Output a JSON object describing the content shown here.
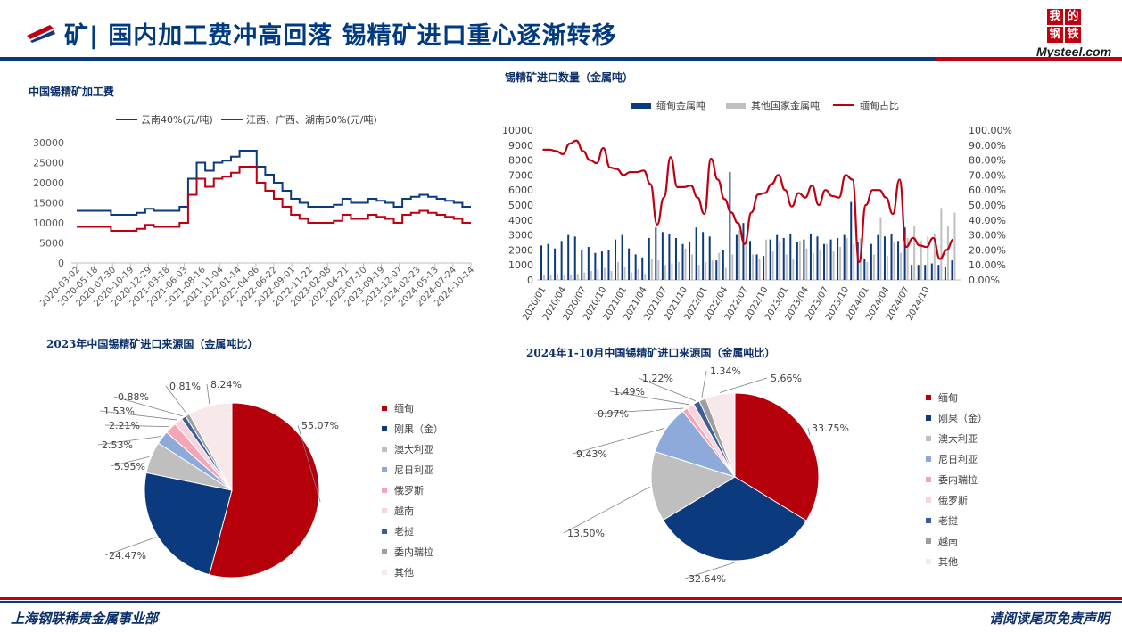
{
  "header": {
    "title": "矿| 国内加工费冲高回落  锡精矿进口重心逐渐转移",
    "brand_chars": [
      "我",
      "的",
      "钢",
      "铁"
    ],
    "brand_word": "Mysteel.com"
  },
  "footer": {
    "left": "上海钢联稀贵金属事业部",
    "right": "请阅读尾页免责声明"
  },
  "colors": {
    "navy": "#0b3a7e",
    "red": "#c00010",
    "grey": "#bfbfbf"
  },
  "chart_data": [
    {
      "type": "line",
      "title": "中国锡精矿加工费",
      "xlabel": "",
      "ylabel": "",
      "ylim": [
        0,
        30000
      ],
      "yticks": [
        "0",
        "5000",
        "10000",
        "15000",
        "20000",
        "25000",
        "30000"
      ],
      "xticks": [
        "2020-03-02",
        "2020-05-18",
        "2020-07-30",
        "2020-10-19",
        "2020-12-29",
        "2021-03-18",
        "2021-06-03",
        "2021-08-16",
        "2021-11-04",
        "2022-01-14",
        "2022-04-06",
        "2022-06-22",
        "2022-09-01",
        "2022-11-21",
        "2023-02-08",
        "2023-04-21",
        "2023-07-10",
        "2023-09-19",
        "2023-12-07",
        "2024-02-23",
        "2024-05-13",
        "2024-07-24",
        "2024-10-14"
      ],
      "legend_position": "top",
      "series": [
        {
          "name": "云南40%(元/吨)",
          "color": "#0b3a7e",
          "values": [
            13000,
            13000,
            13000,
            13000,
            12000,
            12000,
            12000,
            12500,
            13500,
            13000,
            13000,
            13000,
            14000,
            21000,
            25000,
            23000,
            25000,
            25500,
            26500,
            28000,
            28000,
            24000,
            22000,
            20000,
            18000,
            16000,
            15000,
            14000,
            14000,
            14000,
            14500,
            16000,
            15000,
            15000,
            16000,
            15500,
            15000,
            14000,
            16000,
            16500,
            17000,
            16500,
            16000,
            15500,
            15000,
            14000,
            14000
          ]
        },
        {
          "name": "江西、广西、湖南60%(元/吨)",
          "color": "#c00010",
          "values": [
            9000,
            9000,
            9000,
            9000,
            8000,
            8000,
            8000,
            8500,
            9500,
            9000,
            9000,
            9000,
            10000,
            17000,
            21000,
            19000,
            21000,
            21500,
            22500,
            24000,
            24000,
            20000,
            18000,
            16000,
            14000,
            12000,
            11000,
            10000,
            10000,
            10000,
            10500,
            12000,
            11000,
            11000,
            12000,
            11500,
            11000,
            10000,
            12000,
            12500,
            13000,
            12500,
            12000,
            11500,
            11000,
            10000,
            10000
          ]
        }
      ]
    },
    {
      "type": "bar",
      "title": "锡精矿进口数量（金属吨）",
      "ylim": [
        0,
        10000
      ],
      "y2lim": [
        0,
        1
      ],
      "yticks": [
        "0",
        "1000",
        "2000",
        "3000",
        "4000",
        "5000",
        "6000",
        "7000",
        "8000",
        "9000",
        "10000"
      ],
      "y2ticks": [
        "0.00%",
        "10.00%",
        "20.00%",
        "30.00%",
        "40.00%",
        "50.00%",
        "60.00%",
        "70.00%",
        "80.00%",
        "90.00%",
        "100.00%"
      ],
      "xticks": [
        "2020/01",
        "2020/04",
        "2020/07",
        "2020/10",
        "2021/01",
        "2021/04",
        "2021/07",
        "2021/10",
        "2022/01",
        "2022/04",
        "2022/07",
        "2022/10",
        "2023/01",
        "2023/04",
        "2023/07",
        "2023/10",
        "2024/01",
        "2024/04",
        "2024/07",
        "2024/10"
      ],
      "legend_position": "top",
      "series": [
        {
          "name": "缅甸金属吨",
          "color": "#0b3a7e",
          "values": [
            2300,
            2400,
            2100,
            2600,
            3000,
            2900,
            2000,
            2200,
            1800,
            1900,
            2000,
            2700,
            3000,
            2100,
            1700,
            1500,
            2800,
            3500,
            3200,
            3100,
            2800,
            2400,
            2500,
            3500,
            3200,
            2900,
            1300,
            2000,
            7200,
            3000,
            3800,
            2600,
            1700,
            1600,
            2700,
            3000,
            2800,
            3100,
            2500,
            2700,
            3100,
            2900,
            2400,
            2700,
            2800,
            3000,
            5200,
            2500,
            1400,
            2400,
            3000,
            2900,
            3100,
            2600,
            3500,
            1000,
            1000,
            1000,
            1100,
            1000,
            900,
            1300
          ]
        },
        {
          "name": "其他国家金属吨",
          "color": "#bfbfbf",
          "values": [
            300,
            300,
            400,
            300,
            300,
            400,
            500,
            600,
            700,
            800,
            600,
            1200,
            900,
            500,
            700,
            400,
            1400,
            1300,
            1000,
            1100,
            1200,
            2100,
            1700,
            1000,
            1200,
            1300,
            1800,
            800,
            1700,
            3300,
            2500,
            1700,
            1400,
            2700,
            1900,
            2500,
            1700,
            1400,
            2600,
            2100,
            1800,
            2000,
            2400,
            1900,
            2200,
            2800,
            2400,
            2800,
            1200,
            1700,
            4200,
            1600,
            2500,
            1800,
            2800,
            3600,
            2600,
            2900,
            3100,
            4800,
            3600,
            4500
          ]
        },
        {
          "name": "缅甸占比",
          "color": "#c00010",
          "axis": "right",
          "values": [
            0.87,
            0.87,
            0.86,
            0.84,
            0.91,
            0.93,
            0.86,
            0.8,
            0.78,
            0.88,
            0.75,
            0.74,
            0.7,
            0.72,
            0.72,
            0.73,
            0.64,
            0.37,
            0.55,
            0.82,
            0.62,
            0.62,
            0.63,
            0.55,
            0.44,
            0.81,
            0.67,
            0.54,
            0.45,
            0.38,
            0.24,
            0.45,
            0.57,
            0.58,
            0.64,
            0.7,
            0.6,
            0.49,
            0.58,
            0.55,
            0.63,
            0.5,
            0.6,
            0.56,
            0.55,
            0.7,
            0.67,
            0.12,
            0.5,
            0.6,
            0.6,
            0.55,
            0.44,
            0.67,
            0.22,
            0.28,
            0.23,
            0.22,
            0.28,
            0.14,
            0.2,
            0.27
          ]
        }
      ]
    },
    {
      "type": "pie",
      "title": "2023年中国锡精矿进口来源国（金属吨比）",
      "legend_position": "right",
      "labels": [
        "缅甸",
        "刚果（金）",
        "澳大利亚",
        "尼日利亚",
        "俄罗斯",
        "越南",
        "老挝",
        "委内瑞拉",
        "其他"
      ],
      "values": [
        55.07,
        24.47,
        5.95,
        2.53,
        2.21,
        1.53,
        0.88,
        0.81,
        8.24
      ],
      "value_labels": [
        "55.07%",
        "24.47%",
        "5.95%",
        "2.53%",
        "2.21%",
        "1.53%",
        "0.88%",
        "0.81%",
        "8.24%"
      ],
      "colors": [
        "#b5000c",
        "#0b3a7e",
        "#bfbfbf",
        "#8eaadb",
        "#f4a6b4",
        "#f8d5dc",
        "#3b5e99",
        "#9e9e9e",
        "#f7e8ea"
      ]
    },
    {
      "type": "pie",
      "title": "2024年1-10月中国锡精矿进口来源国（金属吨比）",
      "legend_position": "right",
      "labels": [
        "缅甸",
        "刚果（金）",
        "澳大利亚",
        "尼日利亚",
        "委内瑞拉",
        "俄罗斯",
        "老挝",
        "越南",
        "其他"
      ],
      "values": [
        33.75,
        32.64,
        13.5,
        9.43,
        0.97,
        1.49,
        1.22,
        1.34,
        5.66
      ],
      "value_labels": [
        "33.75%",
        "32.64%",
        "13.50%",
        "9.43%",
        "0.97%",
        "1.49%",
        "1.22%",
        "1.34%",
        "5.66%"
      ],
      "colors": [
        "#b5000c",
        "#0b3a7e",
        "#bfbfbf",
        "#8eaadb",
        "#f4a6b4",
        "#f8d5dc",
        "#3b5e99",
        "#9e9e9e",
        "#f7e8ea"
      ]
    }
  ]
}
